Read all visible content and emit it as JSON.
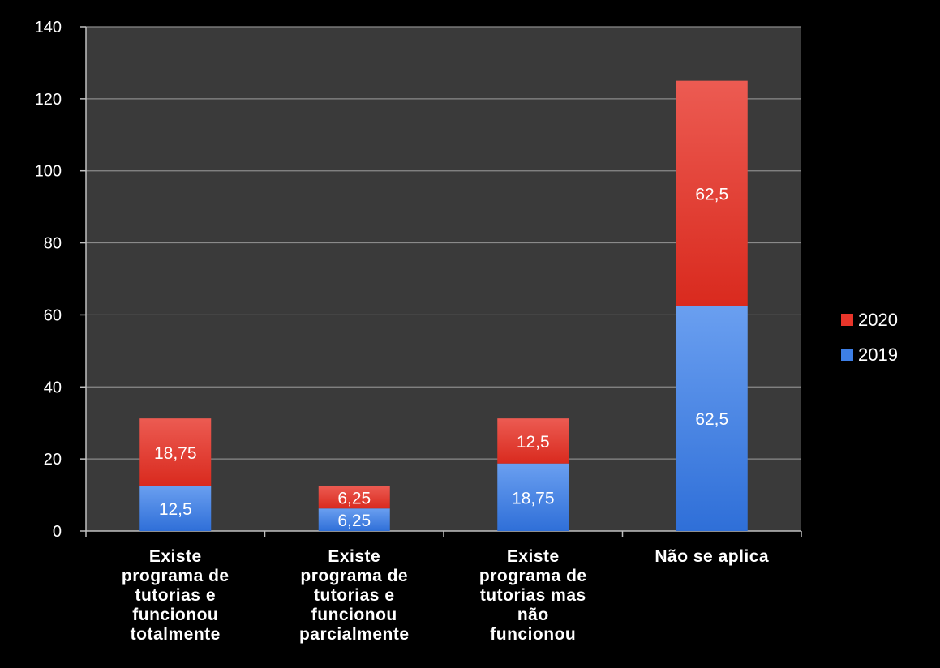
{
  "chart_data": {
    "type": "bar",
    "stacked": true,
    "categories": [
      [
        "Existe",
        "programa de",
        "tutorias e",
        "funcionou",
        "totalmente"
      ],
      [
        "Existe",
        "programa de",
        "tutorias e",
        "funcionou",
        "parcialmente"
      ],
      [
        "Existe",
        "programa de",
        "tutorias mas",
        "não",
        "funcionou"
      ],
      [
        "Não se aplica"
      ]
    ],
    "series": [
      {
        "name": "2019",
        "values": [
          12.5,
          6.25,
          18.75,
          62.5
        ],
        "labels": [
          "12,5",
          "6,25",
          "18,75",
          "62,5"
        ],
        "color": "#3d7fe6"
      },
      {
        "name": "2020",
        "values": [
          18.75,
          6.25,
          12.5,
          62.5
        ],
        "labels": [
          "18,75",
          "6,25",
          "12,5",
          "62,5"
        ],
        "color": "#e8352a"
      }
    ],
    "legend_order": [
      "2020",
      "2019"
    ],
    "legend_position": "right",
    "ylim": [
      0,
      140
    ],
    "yticks": [
      0,
      20,
      40,
      60,
      80,
      100,
      120,
      140
    ],
    "grid": true,
    "title": "",
    "xlabel": "",
    "ylabel": ""
  },
  "colors": {
    "background": "#000000",
    "plot_area": "#3a3a3a",
    "gridline": "#8a8a8a",
    "axis": "#bfbfbf",
    "text": "#ffffff"
  }
}
